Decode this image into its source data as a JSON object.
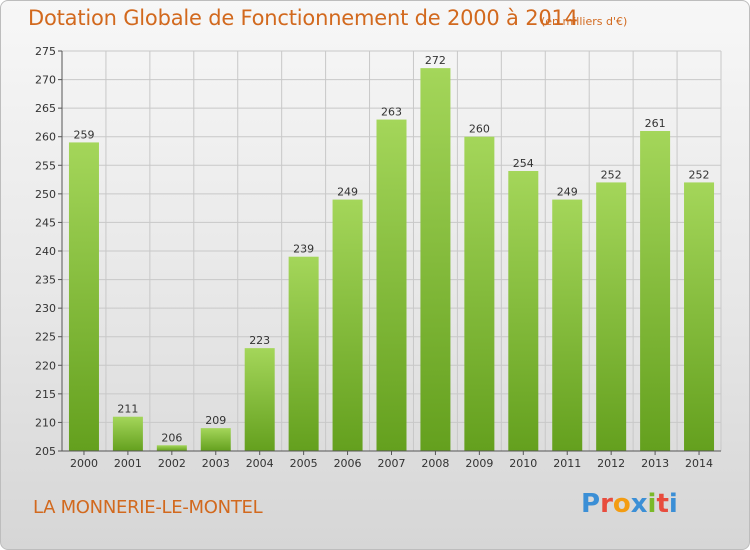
{
  "title": "Dotation Globale de Fonctionnement de 2000 à 2014",
  "subtitle": "(en milliers d'€)",
  "commune": "LA MONNERIE-LE-MONTEL",
  "logo": {
    "text": "Proxiti",
    "letters": [
      "P",
      "r",
      "o",
      "x",
      "i",
      "t",
      "i"
    ],
    "letter_colors": [
      "#3b8fd6",
      "#e84c3d",
      "#f39c12",
      "#3b8fd6",
      "#7bb928",
      "#e84c3d",
      "#3b8fd6"
    ]
  },
  "colors": {
    "title": "#d2691e",
    "bar_top": "#a4d65a",
    "bar_bottom": "#64a01e",
    "grid": "#c8c8c8"
  },
  "chart_data": {
    "type": "bar",
    "title": "Dotation Globale de Fonctionnement de 2000 à 2014",
    "subtitle": "(en milliers d'€)",
    "xlabel": "",
    "ylabel": "",
    "categories": [
      "2000",
      "2001",
      "2002",
      "2003",
      "2004",
      "2005",
      "2006",
      "2007",
      "2008",
      "2009",
      "2010",
      "2011",
      "2012",
      "2013",
      "2014"
    ],
    "values": [
      259,
      211,
      206,
      209,
      223,
      239,
      249,
      263,
      272,
      260,
      254,
      249,
      252,
      261,
      252
    ],
    "ylim": [
      205,
      275
    ],
    "yticks": [
      205,
      210,
      215,
      220,
      225,
      230,
      235,
      240,
      245,
      250,
      255,
      260,
      265,
      270,
      275
    ],
    "grid": true,
    "data_labels": true
  }
}
